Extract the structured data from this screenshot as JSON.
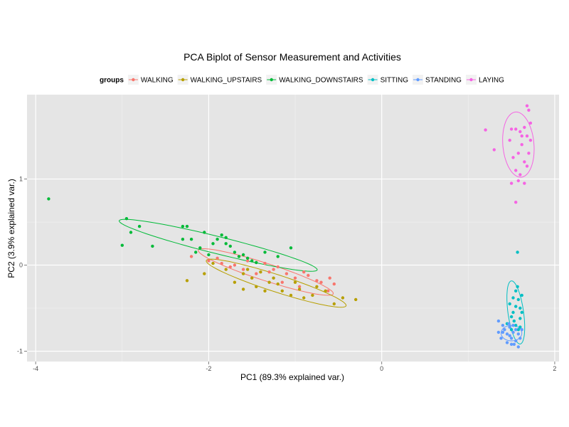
{
  "chart_data": {
    "type": "scatter",
    "title": "PCA Biplot of Sensor Measurement and Activities",
    "xlabel": "PC1 (89.3% explained var.)",
    "ylabel": "PC2 (3.9% explained var.)",
    "xlim": [
      -4.1,
      2.05
    ],
    "ylim": [
      -1.12,
      1.98
    ],
    "xticks": [
      -4,
      -2,
      0,
      2
    ],
    "yticks": [
      -1,
      0,
      1
    ],
    "grid": true,
    "legend": {
      "title": "groups",
      "position": "top",
      "entries": [
        "WALKING",
        "WALKING_UPSTAIRS",
        "WALKING_DOWNSTAIRS",
        "SITTING",
        "STANDING",
        "LAYING"
      ]
    },
    "series": [
      {
        "name": "WALKING",
        "color": "#F8766D",
        "ellipse": {
          "cx": -1.34,
          "cy": -0.08,
          "rx": 0.82,
          "ry": 0.1,
          "angle_deg": -18
        },
        "points": [
          [
            -1.9,
            0.08
          ],
          [
            -1.85,
            0.02
          ],
          [
            -1.7,
            0.0
          ],
          [
            -1.55,
            0.05
          ],
          [
            -1.45,
            0.03
          ],
          [
            -1.35,
            0.02
          ],
          [
            -1.25,
            -0.05
          ],
          [
            -1.2,
            -0.02
          ],
          [
            -1.1,
            -0.1
          ],
          [
            -1.0,
            -0.15
          ],
          [
            -0.95,
            -0.25
          ],
          [
            -0.85,
            -0.12
          ],
          [
            -0.75,
            -0.18
          ],
          [
            -0.7,
            -0.2
          ],
          [
            -0.6,
            -0.15
          ],
          [
            -0.55,
            -0.22
          ],
          [
            -0.62,
            -0.3
          ],
          [
            -1.3,
            -0.08
          ],
          [
            -1.45,
            -0.1
          ],
          [
            -1.6,
            -0.05
          ],
          [
            -1.75,
            -0.02
          ],
          [
            -2.0,
            0.05
          ],
          [
            -2.2,
            0.1
          ],
          [
            -0.9,
            -0.08
          ],
          [
            -1.15,
            -0.2
          ]
        ]
      },
      {
        "name": "WALKING_UPSTAIRS",
        "color": "#B79F00",
        "ellipse": {
          "cx": -1.22,
          "cy": -0.21,
          "rx": 0.85,
          "ry": 0.1,
          "angle_deg": -18
        },
        "points": [
          [
            -2.25,
            -0.18
          ],
          [
            -2.05,
            -0.1
          ],
          [
            -1.95,
            0.02
          ],
          [
            -1.8,
            -0.05
          ],
          [
            -1.6,
            -0.1
          ],
          [
            -1.55,
            -0.05
          ],
          [
            -1.5,
            -0.15
          ],
          [
            -1.4,
            -0.08
          ],
          [
            -1.3,
            -0.2
          ],
          [
            -1.2,
            -0.22
          ],
          [
            -1.15,
            -0.3
          ],
          [
            -1.05,
            -0.35
          ],
          [
            -0.95,
            -0.28
          ],
          [
            -0.9,
            -0.38
          ],
          [
            -0.8,
            -0.35
          ],
          [
            -0.75,
            -0.25
          ],
          [
            -0.65,
            -0.3
          ],
          [
            -0.55,
            -0.45
          ],
          [
            -0.45,
            -0.38
          ],
          [
            -0.3,
            -0.4
          ],
          [
            -1.25,
            -0.15
          ],
          [
            -1.45,
            -0.25
          ],
          [
            -1.35,
            -0.3
          ],
          [
            -1.6,
            -0.28
          ],
          [
            -1.0,
            -0.2
          ],
          [
            -1.7,
            -0.2
          ]
        ]
      },
      {
        "name": "WALKING_DOWNSTAIRS",
        "color": "#00BA38",
        "ellipse": {
          "cx": -1.89,
          "cy": 0.23,
          "rx": 1.18,
          "ry": 0.1,
          "angle_deg": -14
        },
        "points": [
          [
            -3.85,
            0.77
          ],
          [
            -2.95,
            0.54
          ],
          [
            -2.8,
            0.45
          ],
          [
            -2.9,
            0.38
          ],
          [
            -3.0,
            0.23
          ],
          [
            -2.65,
            0.22
          ],
          [
            -2.3,
            0.45
          ],
          [
            -2.25,
            0.45
          ],
          [
            -2.3,
            0.3
          ],
          [
            -2.2,
            0.3
          ],
          [
            -2.15,
            0.15
          ],
          [
            -2.1,
            0.2
          ],
          [
            -2.0,
            0.12
          ],
          [
            -1.9,
            0.3
          ],
          [
            -1.85,
            0.35
          ],
          [
            -1.8,
            0.25
          ],
          [
            -1.75,
            0.22
          ],
          [
            -1.7,
            0.15
          ],
          [
            -1.65,
            0.1
          ],
          [
            -1.6,
            0.12
          ],
          [
            -1.55,
            0.08
          ],
          [
            -1.5,
            0.05
          ],
          [
            -1.45,
            0.03
          ],
          [
            -1.35,
            0.15
          ],
          [
            -1.2,
            0.1
          ],
          [
            -1.05,
            0.2
          ],
          [
            -1.8,
            0.32
          ],
          [
            -1.95,
            0.25
          ],
          [
            -2.05,
            0.38
          ]
        ]
      },
      {
        "name": "SITTING",
        "color": "#00BFC4",
        "ellipse": {
          "cx": 1.55,
          "cy": -0.55,
          "rx": 0.09,
          "ry": 0.37,
          "angle_deg": 8
        },
        "points": [
          [
            1.57,
            0.15
          ],
          [
            1.5,
            -0.6
          ],
          [
            1.52,
            -0.55
          ],
          [
            1.55,
            -0.3
          ],
          [
            1.58,
            -0.4
          ],
          [
            1.6,
            -0.5
          ],
          [
            1.62,
            -0.35
          ],
          [
            1.55,
            -0.7
          ],
          [
            1.48,
            -0.45
          ],
          [
            1.53,
            -0.65
          ],
          [
            1.6,
            -0.62
          ],
          [
            1.57,
            -0.25
          ],
          [
            1.62,
            -0.55
          ],
          [
            1.5,
            -0.75
          ],
          [
            1.45,
            -0.68
          ],
          [
            1.55,
            -0.48
          ],
          [
            1.58,
            -0.75
          ],
          [
            1.52,
            -0.38
          ],
          [
            1.48,
            -0.72
          ],
          [
            1.6,
            -0.72
          ]
        ]
      },
      {
        "name": "STANDING",
        "color": "#619CFF",
        "ellipse": {
          "cx": 1.5,
          "cy": -0.79,
          "rx": 0.12,
          "ry": 0.09,
          "angle_deg": 0
        },
        "points": [
          [
            1.35,
            -0.65
          ],
          [
            1.4,
            -0.7
          ],
          [
            1.45,
            -0.8
          ],
          [
            1.48,
            -0.82
          ],
          [
            1.5,
            -0.85
          ],
          [
            1.52,
            -0.78
          ],
          [
            1.55,
            -0.88
          ],
          [
            1.58,
            -0.8
          ],
          [
            1.42,
            -0.75
          ],
          [
            1.38,
            -0.85
          ],
          [
            1.45,
            -0.9
          ],
          [
            1.53,
            -0.92
          ],
          [
            1.6,
            -0.85
          ],
          [
            1.62,
            -0.75
          ],
          [
            1.48,
            -0.72
          ],
          [
            1.4,
            -0.78
          ],
          [
            1.55,
            -0.75
          ],
          [
            1.5,
            -0.92
          ],
          [
            1.35,
            -0.78
          ],
          [
            1.58,
            -0.95
          ],
          [
            1.47,
            -0.68
          ],
          [
            1.52,
            -0.7
          ]
        ]
      },
      {
        "name": "LAYING",
        "color": "#F564E3",
        "ellipse": {
          "cx": 1.58,
          "cy": 1.4,
          "rx": 0.18,
          "ry": 0.38,
          "angle_deg": 5
        },
        "points": [
          [
            1.68,
            1.85
          ],
          [
            1.7,
            1.8
          ],
          [
            1.72,
            1.65
          ],
          [
            1.65,
            1.6
          ],
          [
            1.6,
            1.55
          ],
          [
            1.55,
            1.58
          ],
          [
            1.5,
            1.58
          ],
          [
            1.68,
            1.5
          ],
          [
            1.72,
            1.45
          ],
          [
            1.62,
            1.4
          ],
          [
            1.58,
            1.3
          ],
          [
            1.52,
            1.25
          ],
          [
            1.65,
            1.2
          ],
          [
            1.55,
            1.1
          ],
          [
            1.6,
            1.05
          ],
          [
            1.68,
            1.15
          ],
          [
            1.7,
            1.3
          ],
          [
            1.5,
            0.95
          ],
          [
            1.58,
            0.98
          ],
          [
            1.65,
            0.95
          ],
          [
            1.2,
            1.57
          ],
          [
            1.3,
            1.34
          ],
          [
            1.55,
            0.73
          ],
          [
            1.62,
            1.5
          ],
          [
            1.48,
            1.45
          ]
        ]
      }
    ]
  }
}
